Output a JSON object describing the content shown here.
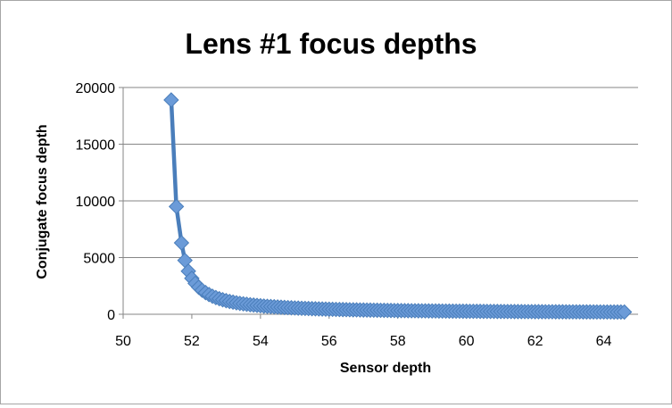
{
  "chart_data": {
    "type": "line",
    "title": "Lens #1 focus depths",
    "xlabel": "Sensor depth",
    "ylabel": "Conjugate focus depth",
    "xlim": [
      50,
      65
    ],
    "ylim": [
      0,
      20000
    ],
    "x_ticks": [
      "50",
      "52",
      "54",
      "56",
      "58",
      "60",
      "62",
      "64"
    ],
    "y_ticks": [
      "0",
      "5000",
      "10000",
      "15000",
      "20000"
    ],
    "grid": true,
    "legend": "none",
    "line_color": "#4a7ebb",
    "marker_fill": "#6b9bd8",
    "marker_stroke": "#4a7ebb",
    "marker": "diamond",
    "series": [
      {
        "x": [
          51.4,
          51.55,
          51.7,
          51.8,
          51.9,
          52.0,
          52.1,
          52.2,
          52.3,
          52.4,
          52.5,
          52.6,
          52.7,
          52.8,
          52.9,
          53.0,
          53.1,
          53.2,
          53.3,
          53.4,
          53.5,
          53.6,
          53.7,
          53.8,
          53.9,
          54.0,
          54.1,
          54.2,
          54.3,
          54.4,
          54.5,
          54.6,
          54.7,
          54.8,
          54.9,
          55.0,
          55.1,
          55.2,
          55.3,
          55.4,
          55.5,
          55.6,
          55.7,
          55.8,
          55.9,
          56.0,
          56.1,
          56.2,
          56.3,
          56.4,
          56.5,
          56.6,
          56.7,
          56.8,
          56.9,
          57.0,
          57.1,
          57.2,
          57.3,
          57.4,
          57.5,
          57.6,
          57.7,
          57.8,
          57.9,
          58.0,
          58.1,
          58.2,
          58.3,
          58.4,
          58.5,
          58.6,
          58.7,
          58.8,
          58.9,
          59.0,
          59.1,
          59.2,
          59.3,
          59.4,
          59.5,
          59.6,
          59.7,
          59.8,
          59.9,
          60.0,
          60.1,
          60.2,
          60.3,
          60.4,
          60.5,
          60.6,
          60.7,
          60.8,
          60.9,
          61.0,
          61.1,
          61.2,
          61.3,
          61.4,
          61.5,
          61.6,
          61.7,
          61.8,
          61.9,
          62.0,
          62.1,
          62.2,
          62.3,
          62.4,
          62.5,
          62.6,
          62.7,
          62.8,
          62.9,
          63.0,
          63.1,
          63.2,
          63.3,
          63.4,
          63.5,
          63.6,
          63.7,
          63.8,
          63.9,
          64.0,
          64.1,
          64.2,
          64.3,
          64.4,
          64.5,
          64.6
        ],
        "y": [
          18900,
          9500,
          6300,
          4750,
          3800,
          3170,
          2720,
          2380,
          2120,
          1910,
          1740,
          1590,
          1470,
          1370,
          1280,
          1200,
          1130,
          1070,
          1010,
          960,
          920,
          880,
          840,
          810,
          780,
          750,
          720,
          700,
          680,
          660,
          640,
          620,
          600,
          585,
          570,
          555,
          540,
          528,
          516,
          504,
          493,
          482,
          472,
          462,
          453,
          444,
          436,
          428,
          420,
          413,
          406,
          399,
          392,
          386,
          380,
          374,
          368,
          363,
          358,
          353,
          348,
          343,
          339,
          334,
          330,
          326,
          322,
          318,
          314,
          311,
          307,
          304,
          300,
          297,
          294,
          291,
          288,
          285,
          282,
          280,
          277,
          274,
          272,
          269,
          267,
          265,
          262,
          260,
          258,
          256,
          254,
          252,
          250,
          248,
          246,
          244,
          242,
          240,
          238,
          237,
          235,
          233,
          232,
          230,
          228,
          227,
          225,
          224,
          222,
          221,
          220,
          218,
          217,
          216,
          214,
          213,
          212,
          210,
          209,
          208,
          207,
          206,
          205,
          203,
          202,
          201,
          200,
          199,
          198,
          197,
          196,
          195
        ]
      }
    ]
  }
}
